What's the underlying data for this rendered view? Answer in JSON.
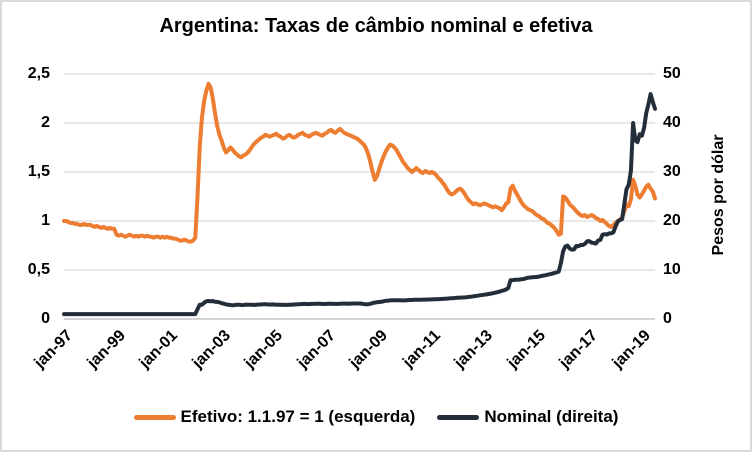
{
  "title": "Argentina: Taxas de câmbio nominal e efetiva",
  "colors": {
    "efetivo": "#ED7D31",
    "nominal": "#242E3A",
    "grid": "#D9D9D9",
    "axis": "#C6C6C6",
    "text": "#000000",
    "background": "#FFFFFF"
  },
  "legend": {
    "efetivo_label": "Efetivo: 1.1.97 = 1 (esquerda)",
    "nominal_label": "Nominal (direita)"
  },
  "chart_data": {
    "type": "line",
    "title": "Argentina: Taxas de câmbio nominal e efetiva",
    "x_unit": "month",
    "x_start": "jan-97",
    "x_end": "jul-19",
    "x_tick_every_months": 24,
    "x_tick_labels": [
      "jan-97",
      "jan-99",
      "jan-01",
      "jan-03",
      "jan-05",
      "jan-07",
      "jan-09",
      "jan-11",
      "jan-13",
      "jan-15",
      "jan-17",
      "jan-19"
    ],
    "grid": true,
    "legend_position": "bottom",
    "left_axis": {
      "range": [
        0,
        2.5
      ],
      "values": [
        0,
        0.5,
        1,
        1.5,
        2,
        2.5
      ],
      "ticks": [
        "0",
        "0,5",
        "1",
        "1,5",
        "2",
        "2,5"
      ]
    },
    "right_axis": {
      "range": [
        0,
        50
      ],
      "values": [
        0,
        10,
        20,
        30,
        40,
        50
      ],
      "ticks": [
        "0",
        "10",
        "20",
        "30",
        "40",
        "50"
      ],
      "title": "Pesos por dólar"
    },
    "series": [
      {
        "name": "Efetivo: 1.1.97 = 1 (esquerda)",
        "axis": "left",
        "color": "#ED7D31",
        "values": [
          1.0,
          1.0,
          0.99,
          0.98,
          0.98,
          0.97,
          0.97,
          0.96,
          0.96,
          0.97,
          0.96,
          0.96,
          0.96,
          0.95,
          0.94,
          0.95,
          0.94,
          0.93,
          0.94,
          0.93,
          0.92,
          0.93,
          0.92,
          0.92,
          0.86,
          0.85,
          0.86,
          0.85,
          0.84,
          0.85,
          0.86,
          0.85,
          0.84,
          0.85,
          0.84,
          0.85,
          0.85,
          0.84,
          0.85,
          0.84,
          0.84,
          0.83,
          0.84,
          0.84,
          0.83,
          0.84,
          0.83,
          0.84,
          0.83,
          0.83,
          0.82,
          0.82,
          0.81,
          0.8,
          0.8,
          0.81,
          0.8,
          0.79,
          0.79,
          0.8,
          0.83,
          1.25,
          1.75,
          2.05,
          2.22,
          2.33,
          2.4,
          2.36,
          2.25,
          2.1,
          1.97,
          1.88,
          1.82,
          1.75,
          1.7,
          1.72,
          1.75,
          1.73,
          1.7,
          1.68,
          1.66,
          1.65,
          1.67,
          1.68,
          1.7,
          1.73,
          1.76,
          1.79,
          1.81,
          1.83,
          1.85,
          1.86,
          1.88,
          1.87,
          1.86,
          1.87,
          1.88,
          1.89,
          1.87,
          1.86,
          1.84,
          1.85,
          1.87,
          1.88,
          1.86,
          1.85,
          1.86,
          1.88,
          1.89,
          1.9,
          1.88,
          1.87,
          1.86,
          1.88,
          1.89,
          1.9,
          1.89,
          1.88,
          1.87,
          1.89,
          1.9,
          1.92,
          1.93,
          1.91,
          1.9,
          1.92,
          1.94,
          1.92,
          1.9,
          1.89,
          1.88,
          1.87,
          1.86,
          1.85,
          1.84,
          1.82,
          1.8,
          1.78,
          1.74,
          1.68,
          1.6,
          1.5,
          1.42,
          1.46,
          1.53,
          1.6,
          1.66,
          1.71,
          1.75,
          1.78,
          1.77,
          1.75,
          1.72,
          1.68,
          1.64,
          1.6,
          1.57,
          1.54,
          1.52,
          1.5,
          1.52,
          1.54,
          1.52,
          1.5,
          1.49,
          1.51,
          1.5,
          1.49,
          1.5,
          1.49,
          1.47,
          1.44,
          1.42,
          1.39,
          1.36,
          1.32,
          1.29,
          1.27,
          1.28,
          1.3,
          1.32,
          1.33,
          1.31,
          1.28,
          1.24,
          1.21,
          1.19,
          1.17,
          1.18,
          1.17,
          1.16,
          1.17,
          1.18,
          1.17,
          1.16,
          1.15,
          1.14,
          1.15,
          1.14,
          1.13,
          1.11,
          1.14,
          1.18,
          1.19,
          1.33,
          1.36,
          1.31,
          1.27,
          1.23,
          1.19,
          1.16,
          1.14,
          1.12,
          1.11,
          1.1,
          1.08,
          1.06,
          1.05,
          1.03,
          1.02,
          1.0,
          0.98,
          0.97,
          0.95,
          0.93,
          0.9,
          0.86,
          0.87,
          1.25,
          1.24,
          1.21,
          1.17,
          1.15,
          1.13,
          1.1,
          1.08,
          1.06,
          1.05,
          1.06,
          1.04,
          1.05,
          1.06,
          1.05,
          1.03,
          1.02,
          1.0,
          1.01,
          0.99,
          0.97,
          0.95,
          0.94,
          0.96,
          0.98,
          1.0,
          1.01,
          1.04,
          1.1,
          1.17,
          1.15,
          1.22,
          1.42,
          1.36,
          1.27,
          1.24,
          1.27,
          1.31,
          1.35,
          1.37,
          1.33,
          1.3,
          1.23
        ]
      },
      {
        "name": "Nominal (direita)",
        "axis": "right",
        "color": "#242E3A",
        "values": [
          1.0,
          1.0,
          1.0,
          1.0,
          1.0,
          1.0,
          1.0,
          1.0,
          1.0,
          1.0,
          1.0,
          1.0,
          1.0,
          1.0,
          1.0,
          1.0,
          1.0,
          1.0,
          1.0,
          1.0,
          1.0,
          1.0,
          1.0,
          1.0,
          1.0,
          1.0,
          1.0,
          1.0,
          1.0,
          1.0,
          1.0,
          1.0,
          1.0,
          1.0,
          1.0,
          1.0,
          1.0,
          1.0,
          1.0,
          1.0,
          1.0,
          1.0,
          1.0,
          1.0,
          1.0,
          1.0,
          1.0,
          1.0,
          1.0,
          1.0,
          1.0,
          1.0,
          1.0,
          1.0,
          1.0,
          1.0,
          1.0,
          1.0,
          1.0,
          1.0,
          1.0,
          1.99,
          2.92,
          2.92,
          3.3,
          3.62,
          3.68,
          3.62,
          3.68,
          3.52,
          3.5,
          3.41,
          3.22,
          3.12,
          3.0,
          2.9,
          2.86,
          2.8,
          2.83,
          2.91,
          2.91,
          2.86,
          2.84,
          2.93,
          2.9,
          2.92,
          2.89,
          2.86,
          2.91,
          2.96,
          2.96,
          3.0,
          2.99,
          2.97,
          2.94,
          2.97,
          2.95,
          2.92,
          2.92,
          2.9,
          2.88,
          2.88,
          2.87,
          2.9,
          2.91,
          2.95,
          2.97,
          3.01,
          3.05,
          3.07,
          3.08,
          3.06,
          3.05,
          3.08,
          3.09,
          3.1,
          3.1,
          3.1,
          3.07,
          3.06,
          3.09,
          3.1,
          3.1,
          3.09,
          3.08,
          3.09,
          3.11,
          3.15,
          3.15,
          3.14,
          3.13,
          3.14,
          3.16,
          3.16,
          3.16,
          3.17,
          3.15,
          3.04,
          3.03,
          3.03,
          3.1,
          3.25,
          3.34,
          3.43,
          3.46,
          3.52,
          3.61,
          3.71,
          3.73,
          3.79,
          3.81,
          3.84,
          3.84,
          3.82,
          3.8,
          3.8,
          3.8,
          3.85,
          3.87,
          3.88,
          3.91,
          3.93,
          3.93,
          3.94,
          3.95,
          3.96,
          3.97,
          3.98,
          4.0,
          4.02,
          4.04,
          4.07,
          4.09,
          4.11,
          4.13,
          4.17,
          4.21,
          4.24,
          4.27,
          4.3,
          4.34,
          4.36,
          4.38,
          4.41,
          4.45,
          4.5,
          4.56,
          4.63,
          4.69,
          4.76,
          4.83,
          4.9,
          4.96,
          5.02,
          5.1,
          5.18,
          5.26,
          5.36,
          5.46,
          5.6,
          5.75,
          5.86,
          6.05,
          6.32,
          7.9,
          7.93,
          8.0,
          8.0,
          8.05,
          8.12,
          8.16,
          8.3,
          8.42,
          8.47,
          8.51,
          8.55,
          8.6,
          8.66,
          8.76,
          8.86,
          8.94,
          9.04,
          9.14,
          9.25,
          9.39,
          9.52,
          9.68,
          11.4,
          13.8,
          14.8,
          15.0,
          14.4,
          14.15,
          14.2,
          14.9,
          14.85,
          15.1,
          15.1,
          15.35,
          15.85,
          15.9,
          15.6,
          15.52,
          15.4,
          16.0,
          16.12,
          17.2,
          17.3,
          17.25,
          17.45,
          17.5,
          17.7,
          18.9,
          19.9,
          20.2,
          20.4,
          23.6,
          26.5,
          27.4,
          30.2,
          40.0,
          36.5,
          36.1,
          37.7,
          37.4,
          39.0,
          42.0,
          43.8,
          45.9,
          44.3,
          42.9
        ]
      }
    ]
  }
}
